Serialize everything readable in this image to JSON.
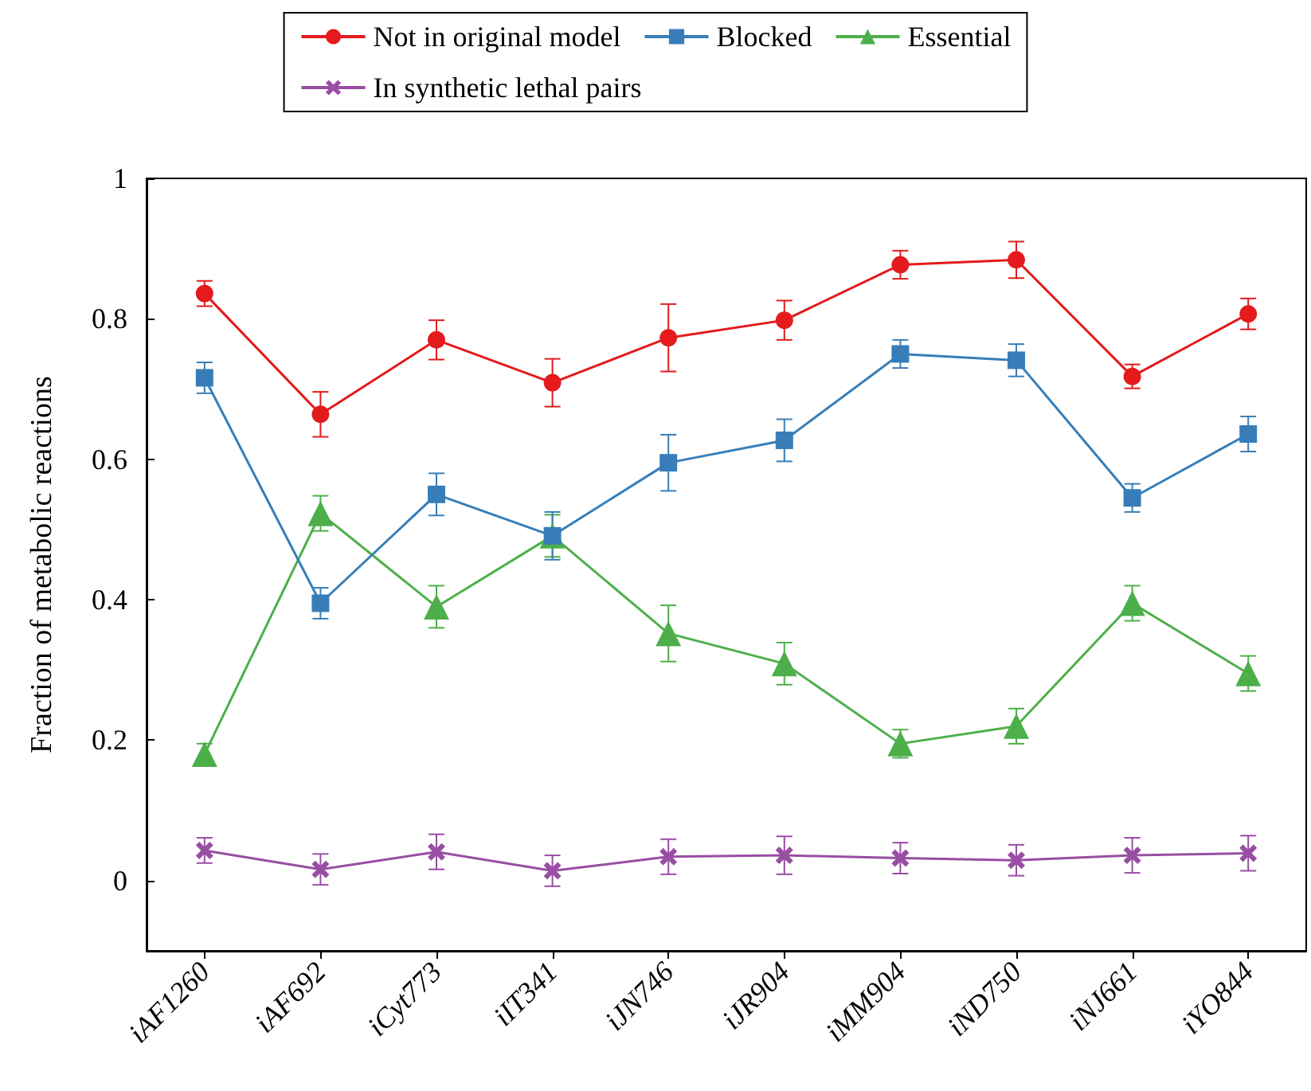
{
  "chart_data": {
    "type": "line",
    "ylabel": "Fraction of metabolic reactions",
    "categories": [
      "iAF1260",
      "iAF692",
      "iCyt773",
      "iIT341",
      "iJN746",
      "iJR904",
      "iMM904",
      "iND750",
      "iNJ661",
      "iYO844"
    ],
    "ylim": [
      -0.1,
      1
    ],
    "yticks": [
      0,
      0.2,
      0.4,
      0.6,
      0.8,
      1
    ],
    "grid": false,
    "legend": "top",
    "line_style": "solid",
    "series": [
      {
        "name": "Not in original model",
        "color": "#e41a1c",
        "marker": "circle",
        "values": [
          0.836,
          0.664,
          0.77,
          0.709,
          0.773,
          0.798,
          0.877,
          0.884,
          0.718,
          0.807
        ],
        "errors": [
          0.018,
          0.032,
          0.028,
          0.034,
          0.048,
          0.028,
          0.02,
          0.026,
          0.017,
          0.022
        ]
      },
      {
        "name": "Essential",
        "color": "#4daf4a",
        "marker": "triangle",
        "values": [
          0.18,
          0.523,
          0.39,
          0.491,
          0.352,
          0.309,
          0.195,
          0.22,
          0.395,
          0.295
        ],
        "errors": [
          0.015,
          0.025,
          0.03,
          0.03,
          0.04,
          0.03,
          0.02,
          0.025,
          0.025,
          0.025
        ]
      },
      {
        "name": "Blocked",
        "color": "#377eb8",
        "marker": "square",
        "values": [
          0.716,
          0.395,
          0.55,
          0.491,
          0.595,
          0.627,
          0.75,
          0.741,
          0.545,
          0.636
        ],
        "errors": [
          0.022,
          0.022,
          0.03,
          0.034,
          0.04,
          0.03,
          0.02,
          0.023,
          0.02,
          0.025
        ]
      },
      {
        "name": "In synthetic lethal pairs",
        "color": "#984ea3",
        "marker": "cross",
        "values": [
          0.043,
          0.016,
          0.041,
          0.014,
          0.034,
          0.036,
          0.032,
          0.029,
          0.036,
          0.039
        ],
        "errors": [
          0.018,
          0.022,
          0.025,
          0.022,
          0.025,
          0.027,
          0.022,
          0.022,
          0.025,
          0.025
        ]
      }
    ]
  }
}
